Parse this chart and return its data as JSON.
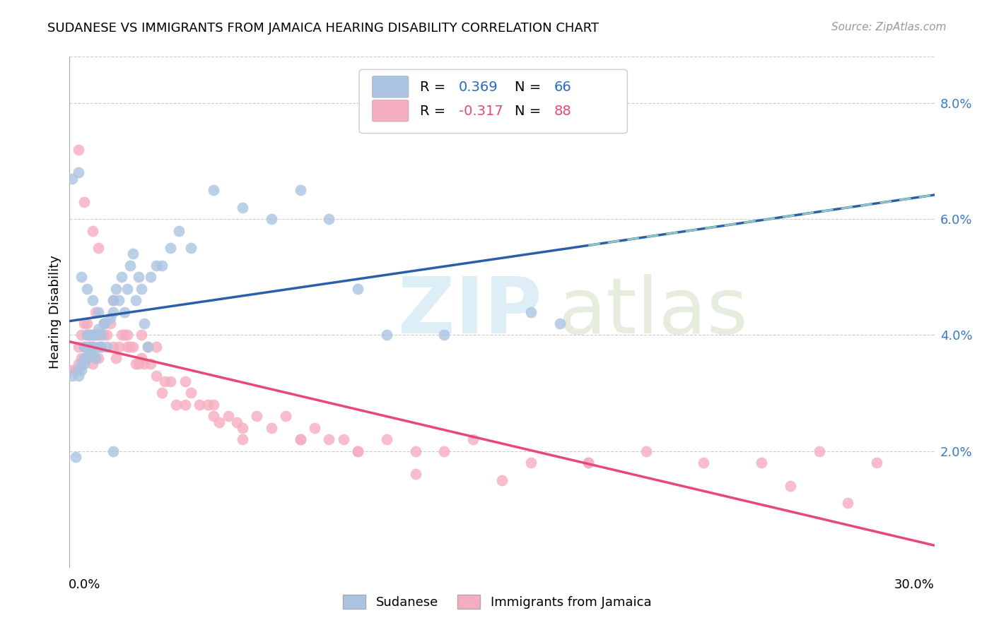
{
  "title": "SUDANESE VS IMMIGRANTS FROM JAMAICA HEARING DISABILITY CORRELATION CHART",
  "source": "Source: ZipAtlas.com",
  "ylabel": "Hearing Disability",
  "right_yticks": [
    "2.0%",
    "4.0%",
    "6.0%",
    "8.0%"
  ],
  "right_ytick_vals": [
    0.02,
    0.04,
    0.06,
    0.08
  ],
  "xlim": [
    0.0,
    0.3
  ],
  "ylim": [
    0.0,
    0.088
  ],
  "r_blue": "0.369",
  "n_blue": "66",
  "r_pink": "-0.317",
  "n_pink": "88",
  "blue_scatter": "#aac4e2",
  "pink_scatter": "#f5adc0",
  "line_blue_solid": "#2c5faa",
  "line_pink_solid": "#e84878",
  "line_blue_dashed": "#90c8c0",
  "grid_color": "#cccccc",
  "sudanese_x": [
    0.001,
    0.002,
    0.003,
    0.003,
    0.004,
    0.004,
    0.005,
    0.005,
    0.005,
    0.006,
    0.006,
    0.006,
    0.007,
    0.007,
    0.007,
    0.008,
    0.008,
    0.008,
    0.009,
    0.009,
    0.01,
    0.01,
    0.011,
    0.011,
    0.012,
    0.012,
    0.013,
    0.014,
    0.015,
    0.015,
    0.016,
    0.017,
    0.018,
    0.019,
    0.02,
    0.021,
    0.022,
    0.023,
    0.024,
    0.025,
    0.026,
    0.027,
    0.028,
    0.03,
    0.032,
    0.035,
    0.038,
    0.042,
    0.05,
    0.06,
    0.07,
    0.08,
    0.09,
    0.1,
    0.11,
    0.13,
    0.16,
    0.17,
    0.001,
    0.003,
    0.004,
    0.006,
    0.008,
    0.01,
    0.012,
    0.015
  ],
  "sudanese_y": [
    0.033,
    0.019,
    0.033,
    0.034,
    0.034,
    0.035,
    0.038,
    0.036,
    0.035,
    0.038,
    0.04,
    0.036,
    0.037,
    0.038,
    0.04,
    0.037,
    0.038,
    0.04,
    0.036,
    0.04,
    0.038,
    0.041,
    0.038,
    0.04,
    0.042,
    0.042,
    0.038,
    0.043,
    0.046,
    0.044,
    0.048,
    0.046,
    0.05,
    0.044,
    0.048,
    0.052,
    0.054,
    0.046,
    0.05,
    0.048,
    0.042,
    0.038,
    0.05,
    0.052,
    0.052,
    0.055,
    0.058,
    0.055,
    0.065,
    0.062,
    0.06,
    0.065,
    0.06,
    0.048,
    0.04,
    0.04,
    0.044,
    0.042,
    0.067,
    0.068,
    0.05,
    0.048,
    0.046,
    0.044,
    0.042,
    0.02
  ],
  "jamaica_x": [
    0.001,
    0.002,
    0.003,
    0.003,
    0.004,
    0.004,
    0.005,
    0.005,
    0.006,
    0.006,
    0.006,
    0.007,
    0.007,
    0.008,
    0.008,
    0.009,
    0.009,
    0.01,
    0.01,
    0.011,
    0.012,
    0.013,
    0.014,
    0.015,
    0.016,
    0.017,
    0.018,
    0.019,
    0.02,
    0.021,
    0.022,
    0.023,
    0.024,
    0.025,
    0.026,
    0.027,
    0.028,
    0.03,
    0.032,
    0.033,
    0.035,
    0.037,
    0.04,
    0.042,
    0.045,
    0.048,
    0.05,
    0.052,
    0.055,
    0.058,
    0.06,
    0.065,
    0.07,
    0.075,
    0.08,
    0.085,
    0.09,
    0.095,
    0.1,
    0.11,
    0.12,
    0.13,
    0.14,
    0.16,
    0.18,
    0.2,
    0.22,
    0.24,
    0.26,
    0.28,
    0.003,
    0.005,
    0.008,
    0.01,
    0.015,
    0.02,
    0.025,
    0.03,
    0.04,
    0.05,
    0.06,
    0.08,
    0.1,
    0.12,
    0.15,
    0.18,
    0.25,
    0.27
  ],
  "jamaica_y": [
    0.034,
    0.034,
    0.035,
    0.038,
    0.036,
    0.04,
    0.038,
    0.042,
    0.04,
    0.036,
    0.042,
    0.04,
    0.038,
    0.038,
    0.035,
    0.04,
    0.044,
    0.036,
    0.04,
    0.038,
    0.04,
    0.04,
    0.042,
    0.038,
    0.036,
    0.038,
    0.04,
    0.04,
    0.038,
    0.038,
    0.038,
    0.035,
    0.035,
    0.036,
    0.035,
    0.038,
    0.035,
    0.033,
    0.03,
    0.032,
    0.032,
    0.028,
    0.028,
    0.03,
    0.028,
    0.028,
    0.026,
    0.025,
    0.026,
    0.025,
    0.024,
    0.026,
    0.024,
    0.026,
    0.022,
    0.024,
    0.022,
    0.022,
    0.02,
    0.022,
    0.02,
    0.02,
    0.022,
    0.018,
    0.018,
    0.02,
    0.018,
    0.018,
    0.02,
    0.018,
    0.072,
    0.063,
    0.058,
    0.055,
    0.046,
    0.04,
    0.04,
    0.038,
    0.032,
    0.028,
    0.022,
    0.022,
    0.02,
    0.016,
    0.015,
    0.018,
    0.014,
    0.011
  ]
}
